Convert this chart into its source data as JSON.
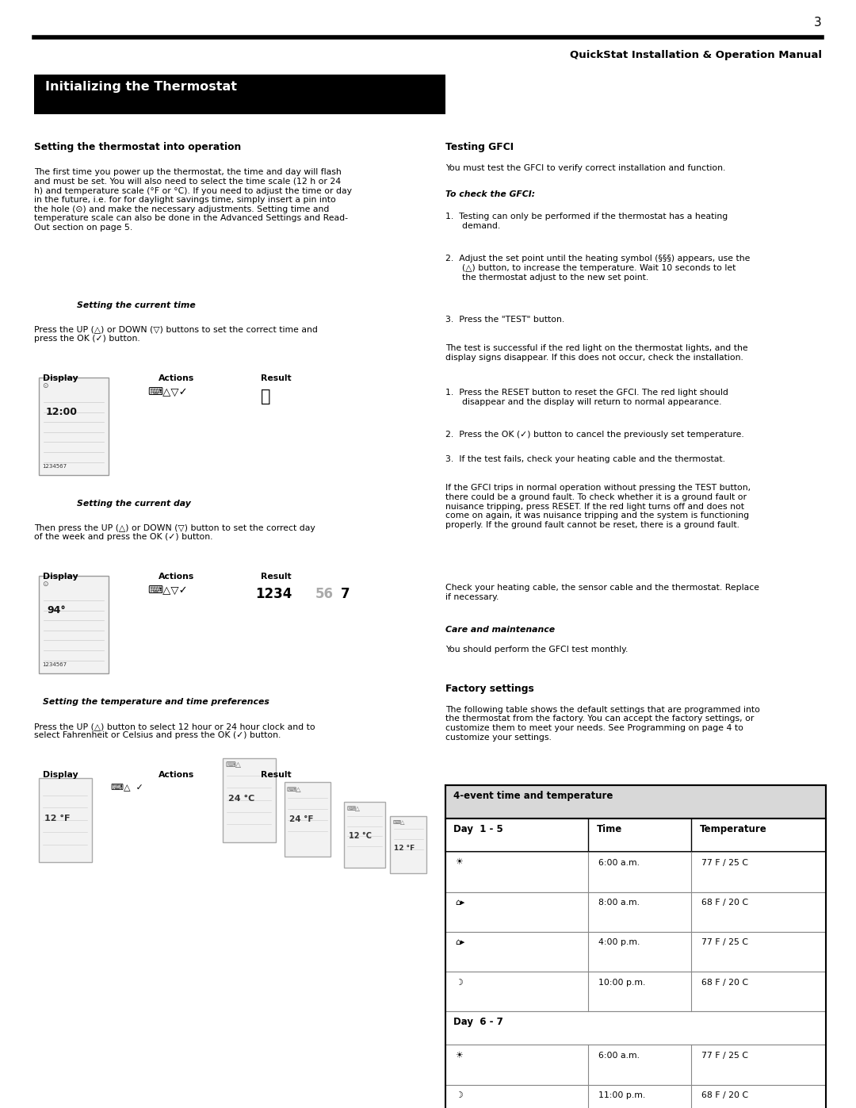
{
  "page_number": "3",
  "header_line": "QuickStat Installation & Operation Manual",
  "section_title": "Initializing the Thermostat",
  "background_color": "#ffffff",
  "section_bg": "#000000",
  "section_text_color": "#ffffff",
  "body_text_color": "#000000"
}
